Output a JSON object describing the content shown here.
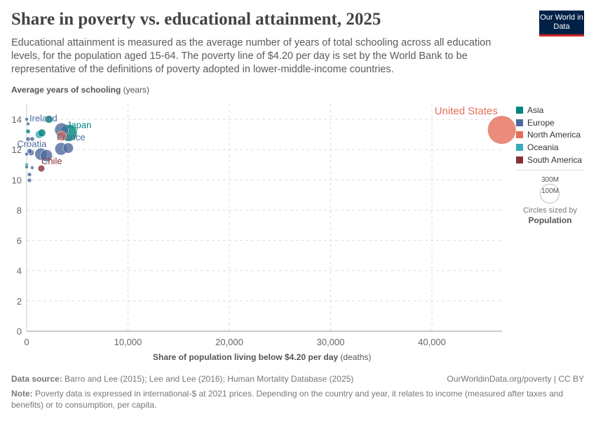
{
  "header": {
    "title": "Share in poverty vs. educational attainment, 2025",
    "subtitle": "Educational attainment is measured as the average number of years of total schooling across all education levels, for the population aged 15-64. The poverty line of $4.20 per day is set by the World Bank to be representative of the definitions of poverty adopted in lower-middle-income countries.",
    "logo": "Our World in Data"
  },
  "footer": {
    "source_label": "Data source:",
    "source": "Barro and Lee (2015); Lee and Lee (2016); Human Mortality Database (2025)",
    "link": "OurWorldinData.org/poverty | CC BY",
    "note_label": "Note:",
    "note": "Poverty data is expressed in international-$ at 2021 prices. Depending on the country and year, it relates to income (measured after taxes and benefits) or to consumption, per capita."
  },
  "size_legend": {
    "big": "300M",
    "small": "100M",
    "caption": "Circles sized by",
    "variable": "Population"
  },
  "chart_data": {
    "type": "scatter",
    "ylabel": "Average years of schooling",
    "yunit": "(years)",
    "xlabel": "Share of population living below $4.20 per day",
    "xunit": "(deaths)",
    "xlim": [
      0,
      47000
    ],
    "ylim": [
      0,
      15
    ],
    "xticks": [
      "0",
      "10,000",
      "20,000",
      "30,000",
      "40,000"
    ],
    "xtick_values": [
      0,
      10000,
      20000,
      30000,
      40000
    ],
    "yticks": [
      "0",
      "2",
      "4",
      "6",
      "8",
      "10",
      "12",
      "14"
    ],
    "ytick_values": [
      0,
      2,
      4,
      6,
      8,
      10,
      12,
      14
    ],
    "grid": true,
    "legend_position": "right",
    "regions": [
      {
        "name": "Asia",
        "color": "#00847e"
      },
      {
        "name": "Europe",
        "color": "#4c6a9c"
      },
      {
        "name": "North America",
        "color": "#e56e5a"
      },
      {
        "name": "Oceania",
        "color": "#38aaba"
      },
      {
        "name": "South America",
        "color": "#883039"
      }
    ],
    "points": [
      {
        "label": "United States",
        "region": "North America",
        "x": 46900,
        "y": 13.3,
        "pop": 340
      },
      {
        "label": "Japan",
        "region": "Asia",
        "x": 4150,
        "y": 13.1,
        "pop": 120
      },
      {
        "label": "",
        "region": "Europe",
        "x": 3450,
        "y": 13.3,
        "pop": 80
      },
      {
        "label": "",
        "region": "North America",
        "x": 3450,
        "y": 12.9,
        "pop": 40
      },
      {
        "label": "France",
        "region": "Europe",
        "x": 3400,
        "y": 12.05,
        "pop": 65
      },
      {
        "label": "",
        "region": "Europe",
        "x": 4100,
        "y": 12.1,
        "pop": 45
      },
      {
        "label": "",
        "region": "Europe",
        "x": 1400,
        "y": 11.7,
        "pop": 60
      },
      {
        "label": "",
        "region": "Europe",
        "x": 1950,
        "y": 11.6,
        "pop": 60
      },
      {
        "label": "Chile",
        "region": "South America",
        "x": 1450,
        "y": 10.75,
        "pop": 19
      },
      {
        "label": "Ireland",
        "region": "Europe",
        "x": 0,
        "y": 14.0,
        "pop": 5
      },
      {
        "label": "",
        "region": "Europe",
        "x": 140,
        "y": 13.7,
        "pop": 5
      },
      {
        "label": "",
        "region": "Asia",
        "x": 2200,
        "y": 14.0,
        "pop": 25
      },
      {
        "label": "",
        "region": "Asia",
        "x": 140,
        "y": 13.2,
        "pop": 8
      },
      {
        "label": "",
        "region": "Europe",
        "x": 140,
        "y": 12.7,
        "pop": 8
      },
      {
        "label": "",
        "region": "Europe",
        "x": 550,
        "y": 12.7,
        "pop": 8
      },
      {
        "label": "",
        "region": "Oceania",
        "x": 1250,
        "y": 13.0,
        "pop": 26
      },
      {
        "label": "",
        "region": "Asia",
        "x": 1500,
        "y": 13.1,
        "pop": 25
      },
      {
        "label": "Croatia",
        "region": "Europe",
        "x": 300,
        "y": 11.9,
        "pop": 10
      },
      {
        "label": "",
        "region": "Europe",
        "x": 450,
        "y": 11.8,
        "pop": 15
      },
      {
        "label": "",
        "region": "Europe",
        "x": 0,
        "y": 11.7,
        "pop": 4
      },
      {
        "label": "",
        "region": "Oceania",
        "x": 0,
        "y": 11.0,
        "pop": 5
      },
      {
        "label": "",
        "region": "Europe",
        "x": 0,
        "y": 10.85,
        "pop": 4
      },
      {
        "label": "",
        "region": "Europe",
        "x": 550,
        "y": 10.8,
        "pop": 5
      },
      {
        "label": "",
        "region": "Europe",
        "x": 280,
        "y": 10.35,
        "pop": 7
      },
      {
        "label": "",
        "region": "Europe",
        "x": 280,
        "y": 9.97,
        "pop": 7
      }
    ]
  }
}
